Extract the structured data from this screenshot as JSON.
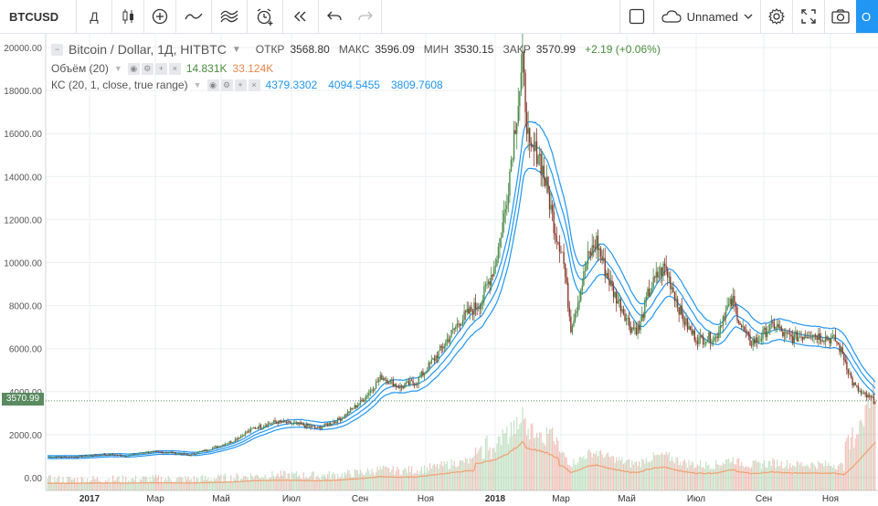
{
  "toolbar": {
    "symbol": "BTCUSD",
    "interval": "Д",
    "layout_name": "Unnamed",
    "blue_button": "О"
  },
  "legend": {
    "title": "Bitcoin / Dollar, 1Д, HITBTC",
    "open_label": "ОТКР",
    "open": "3568.80",
    "high_label": "МАКС",
    "high": "3596.09",
    "low_label": "МИН",
    "low": "3530.15",
    "close_label": "ЗАКР",
    "close": "3570.99",
    "change": "+2.19 (+0.06%)",
    "volume_label": "Объём (20)",
    "volume_v1": "14.831K",
    "volume_v2": "33.124K",
    "kc_label": "КС (20, 1, close, true range)",
    "kc_upper": "4379.3302",
    "kc_mid": "4094.5455",
    "kc_lower": "3809.7608"
  },
  "colors": {
    "up": "#7fbf80",
    "down": "#e07b6b",
    "keltner": "#2196f3",
    "volume_ma": "#f0a070",
    "price_line": "#5a8a60",
    "kc_text": "#2196f3",
    "vol_v1": "#4a8b3c",
    "vol_v2": "#e8854a"
  },
  "price_tag": "3570.99",
  "chart_data": {
    "type": "candlestick",
    "y_ticks": [
      "20000.00",
      "18000.00",
      "16000.00",
      "14000.00",
      "12000.00",
      "10000.00",
      "8000.00",
      "6000.00",
      "4000.00",
      "2000.00",
      "0.00"
    ],
    "x_ticks": [
      "2017",
      "Мар",
      "Май",
      "Июл",
      "Сен",
      "Ноя",
      "2018",
      "Мар",
      "Май",
      "Июл",
      "Сен",
      "Ноя"
    ],
    "ylim": [
      0,
      20500
    ],
    "last_price": 3570.99,
    "closes": [
      [
        0,
        960
      ],
      [
        20,
        970
      ],
      [
        40,
        1080
      ],
      [
        55,
        1020
      ],
      [
        70,
        1190
      ],
      [
        85,
        1180
      ],
      [
        100,
        1050
      ],
      [
        115,
        1350
      ],
      [
        130,
        1700
      ],
      [
        145,
        2300
      ],
      [
        160,
        2600
      ],
      [
        175,
        2500
      ],
      [
        190,
        2300
      ],
      [
        205,
        2700
      ],
      [
        220,
        3500
      ],
      [
        235,
        4700
      ],
      [
        248,
        4200
      ],
      [
        260,
        4500
      ],
      [
        275,
        5800
      ],
      [
        290,
        7300
      ],
      [
        305,
        8200
      ],
      [
        315,
        10000
      ],
      [
        322,
        12500
      ],
      [
        328,
        16000
      ],
      [
        334,
        19100
      ],
      [
        339,
        15000
      ],
      [
        345,
        15200
      ],
      [
        351,
        13500
      ],
      [
        357,
        11500
      ],
      [
        362,
        10500
      ],
      [
        368,
        7000
      ],
      [
        374,
        8500
      ],
      [
        380,
        10200
      ],
      [
        386,
        11000
      ],
      [
        392,
        9700
      ],
      [
        398,
        8600
      ],
      [
        404,
        7900
      ],
      [
        410,
        7000
      ],
      [
        416,
        6900
      ],
      [
        422,
        8500
      ],
      [
        428,
        9300
      ],
      [
        434,
        9800
      ],
      [
        440,
        8700
      ],
      [
        446,
        7500
      ],
      [
        452,
        6800
      ],
      [
        458,
        6400
      ],
      [
        464,
        6500
      ],
      [
        470,
        6500
      ],
      [
        476,
        7700
      ],
      [
        482,
        8200
      ],
      [
        488,
        7000
      ],
      [
        494,
        6300
      ],
      [
        500,
        6400
      ],
      [
        506,
        6900
      ],
      [
        512,
        7100
      ],
      [
        518,
        6600
      ],
      [
        524,
        6500
      ],
      [
        530,
        6600
      ],
      [
        536,
        6700
      ],
      [
        542,
        6600
      ],
      [
        548,
        6500
      ],
      [
        554,
        6400
      ],
      [
        560,
        5600
      ],
      [
        566,
        4400
      ],
      [
        572,
        3900
      ],
      [
        578,
        3700
      ],
      [
        582,
        3570
      ]
    ]
  }
}
